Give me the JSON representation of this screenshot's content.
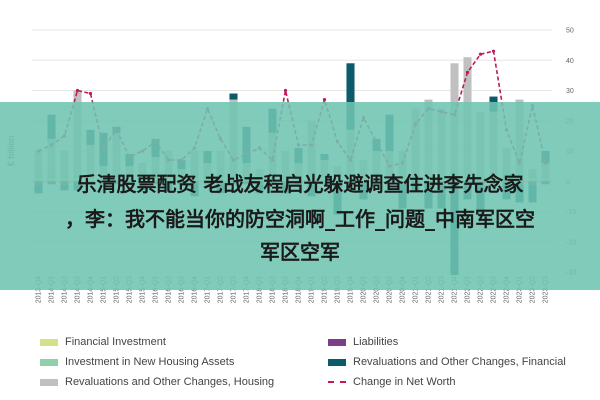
{
  "chart_data": {
    "type": "bar",
    "ylabel": "€ billion",
    "ylim": [
      -30,
      50
    ],
    "yticks": [
      -30,
      -20,
      -10,
      0,
      10,
      20,
      30,
      40,
      50
    ],
    "categories": [
      "2013-Q4",
      "2014-Q1",
      "2014-Q2",
      "2014-Q3",
      "2014-Q4",
      "2015-Q1",
      "2015-Q2",
      "2015-Q3",
      "2015-Q4",
      "2016-Q1",
      "2016-Q2",
      "2016-Q3",
      "2016-Q4",
      "2017-Q1",
      "2017-Q2",
      "2017-Q3",
      "2017-Q4",
      "2018-Q1",
      "2018-Q2",
      "2018-Q3",
      "2018-Q4",
      "2019-Q1",
      "2019-Q2",
      "2019-Q3",
      "2019-Q4",
      "2020-Q1",
      "2020-Q2",
      "2020-Q3",
      "2020-Q4",
      "2021-Q1",
      "2021-Q2",
      "2021-Q3",
      "2021-Q4",
      "2022-Q1",
      "2022-Q2",
      "2022-Q3",
      "2022-Q4",
      "2023-Q1",
      "2023-Q2",
      "2023-Q3"
    ],
    "series": [
      {
        "name": "Financial Investment",
        "color": "#d6e08a",
        "values": [
          1,
          1,
          1,
          1,
          1,
          1,
          1,
          1,
          1,
          1,
          1,
          1,
          1,
          1,
          1,
          1,
          1,
          1,
          1,
          1,
          1,
          1,
          1,
          1,
          1,
          1,
          1,
          1,
          1,
          1,
          1,
          1,
          2,
          1,
          1,
          1,
          1,
          1,
          1,
          1
        ]
      },
      {
        "name": "Investment in New Housing Assets",
        "color": "#8fd0a8",
        "values": [
          1,
          1,
          1,
          1,
          1,
          1,
          1,
          1,
          1,
          1,
          1,
          1,
          1,
          1,
          1,
          1,
          1,
          1,
          1,
          1,
          1,
          1,
          1,
          1,
          1,
          1,
          1,
          1,
          1,
          1,
          1,
          1,
          2,
          2,
          2,
          2,
          2,
          1,
          1,
          1
        ]
      },
      {
        "name": "Revaluations and Other Changes, Housing",
        "color": "#c0c0c0",
        "values": [
          8,
          12,
          8,
          28,
          10,
          3,
          14,
          3,
          4,
          6,
          8,
          2,
          8,
          4,
          8,
          25,
          4,
          2,
          14,
          8,
          4,
          18,
          5,
          3,
          15,
          5,
          8,
          8,
          8,
          22,
          25,
          22,
          35,
          38,
          20,
          20,
          8,
          25,
          2,
          4
        ]
      },
      {
        "name": "Liabilities",
        "color": "#7b3f8a",
        "values": [
          -1,
          -1,
          -1,
          -1,
          -1,
          -1,
          -1,
          -1,
          -1,
          -1,
          -1,
          -1,
          -1,
          -1,
          -1,
          -1,
          -1,
          -1,
          -1,
          -1,
          -1,
          -1,
          -1,
          -1,
          -1,
          -1,
          -1,
          -1,
          -1,
          -1,
          -1,
          -1,
          -1,
          -1,
          -1,
          -1,
          -1,
          -1,
          -1,
          -1
        ]
      },
      {
        "name": "Revaluations and Other Changes, Financial",
        "color": "#0b5b6b",
        "values": [
          -3,
          8,
          -2,
          -2,
          5,
          11,
          2,
          4,
          -2,
          6,
          -2,
          3,
          -4,
          4,
          -3,
          2,
          12,
          -3,
          8,
          -3,
          5,
          -4,
          2,
          -10,
          22,
          -5,
          4,
          12,
          -8,
          -2,
          -8,
          -8,
          -30,
          -5,
          -10,
          5,
          -5,
          -6,
          -6,
          4
        ]
      }
    ],
    "line": {
      "name": "Change in Net Worth",
      "color": "#c2185b",
      "values": [
        10,
        12,
        15,
        30,
        29,
        11,
        17,
        8,
        10,
        13,
        7,
        7,
        11,
        24,
        14,
        7,
        9,
        11,
        7,
        30,
        12,
        12,
        27,
        13,
        7,
        21,
        13,
        5,
        6,
        19,
        24,
        23,
        22,
        36,
        42,
        43,
        17,
        6,
        25,
        6
      ]
    },
    "legend_position": "bottom",
    "grid": true
  },
  "overlay": {
    "line1": "乐清股票配资 老战友程启光躲避调查住进李先念家",
    "line2": "，李：我不能当你的防空洞啊_工作_问题_中南军区空",
    "line3": "军区空军"
  },
  "legend": [
    {
      "key": "financial_investment",
      "label": "Financial Investment",
      "color": "#d6e08a",
      "kind": "swatch"
    },
    {
      "key": "liabilities",
      "label": "Liabilities",
      "color": "#7b3f8a",
      "kind": "swatch"
    },
    {
      "key": "new_housing",
      "label": "Investment in New Housing Assets",
      "color": "#8fd0a8",
      "kind": "swatch"
    },
    {
      "key": "reval_financial",
      "label": "Revaluations and Other Changes, Financial",
      "color": "#0b5b6b",
      "kind": "swatch"
    },
    {
      "key": "reval_housing",
      "label": "Revaluations and Other Changes, Housing",
      "color": "#c0c0c0",
      "kind": "swatch"
    },
    {
      "key": "net_worth",
      "label": "Change in Net Worth",
      "color": "#c2185b",
      "kind": "line"
    }
  ]
}
